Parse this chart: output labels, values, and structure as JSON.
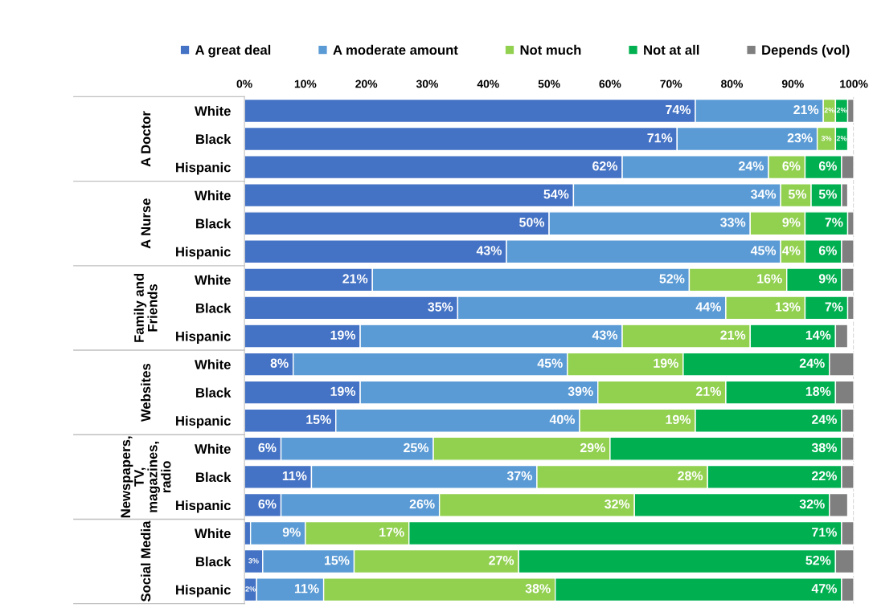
{
  "chart_data": {
    "type": "bar",
    "orientation": "horizontal",
    "stacked": true,
    "categories": [
      "White",
      "Black",
      "Hispanic",
      "White",
      "Black",
      "Hispanic",
      "White",
      "Black",
      "Hispanic",
      "White",
      "Black",
      "Hispanic",
      "White",
      "Black",
      "Hispanic",
      "White",
      "Black",
      "Hispanic"
    ],
    "annotations": [
      "A Doctor",
      "A Nurse",
      "Family and\nFriends",
      "Websites",
      "Newspapers,\nTV,\nmagazines,\nradio",
      "Social Media"
    ],
    "series": [
      {
        "name": "A great deal",
        "color": "#4472c4",
        "values": [
          74,
          71,
          62,
          54,
          50,
          43,
          21,
          35,
          19,
          8,
          19,
          15,
          6,
          11,
          6,
          1,
          3,
          2
        ],
        "value_labels": [
          "74%",
          "71%",
          "62%",
          "54%",
          "50%",
          "43%",
          "21%",
          "35%",
          "19%",
          "8%",
          "19%",
          "15%",
          "6%",
          "11%",
          "6%",
          null,
          "3%",
          "2%"
        ]
      },
      {
        "name": "A moderate amount",
        "color": "#5b9bd5",
        "values": [
          21,
          23,
          24,
          34,
          33,
          45,
          52,
          44,
          43,
          45,
          39,
          40,
          25,
          37,
          26,
          9,
          15,
          11
        ],
        "value_labels": [
          "21%",
          "23%",
          "24%",
          "34%",
          "33%",
          "45%",
          "52%",
          "44%",
          "43%",
          "45%",
          "39%",
          "40%",
          "25%",
          "37%",
          "26%",
          "9%",
          "15%",
          "11%"
        ]
      },
      {
        "name": "Not much",
        "color": "#92d050",
        "values": [
          2,
          3,
          6,
          5,
          9,
          4,
          16,
          13,
          21,
          19,
          21,
          19,
          29,
          28,
          32,
          17,
          27,
          38
        ],
        "value_labels": [
          "2%",
          "3%",
          "6%",
          "5%",
          "9%",
          "4%",
          "16%",
          "13%",
          "21%",
          "19%",
          "21%",
          "19%",
          "29%",
          "28%",
          "32%",
          "17%",
          "27%",
          "38%"
        ]
      },
      {
        "name": "Not at all",
        "color": "#00b050",
        "values": [
          2,
          2,
          6,
          5,
          7,
          6,
          9,
          7,
          14,
          24,
          18,
          24,
          38,
          22,
          32,
          71,
          52,
          47
        ],
        "value_labels": [
          "2%",
          "2%",
          "6%",
          "5%",
          "7%",
          "6%",
          "9%",
          "7%",
          "14%",
          "24%",
          "18%",
          "24%",
          "38%",
          "22%",
          "32%",
          "71%",
          "52%",
          "47%"
        ]
      },
      {
        "name": "Depends (vol)",
        "color": "#7f7f7f",
        "values": [
          1,
          null,
          2,
          1,
          1,
          2,
          2,
          1,
          2,
          4,
          3,
          2,
          2,
          2,
          3,
          2,
          3,
          2
        ]
      }
    ],
    "xlim": [
      0,
      100
    ],
    "xticks": [
      {
        "value": 0,
        "label": "0%"
      },
      {
        "value": 10,
        "label": "10%"
      },
      {
        "value": 20,
        "label": "20%"
      },
      {
        "value": 30,
        "label": "30%"
      },
      {
        "value": 40,
        "label": "40%"
      },
      {
        "value": 50,
        "label": "50%"
      },
      {
        "value": 60,
        "label": "60%"
      },
      {
        "value": 70,
        "label": "70%"
      },
      {
        "value": 80,
        "label": "80%"
      },
      {
        "value": 90,
        "label": "90%"
      },
      {
        "value": 100,
        "label": "100%"
      }
    ],
    "ref_lines": [
      {
        "axis": "x",
        "value": 100,
        "color": "#bfbfbf",
        "line_style": "dashed"
      }
    ],
    "legend": "top",
    "grid": false
  }
}
